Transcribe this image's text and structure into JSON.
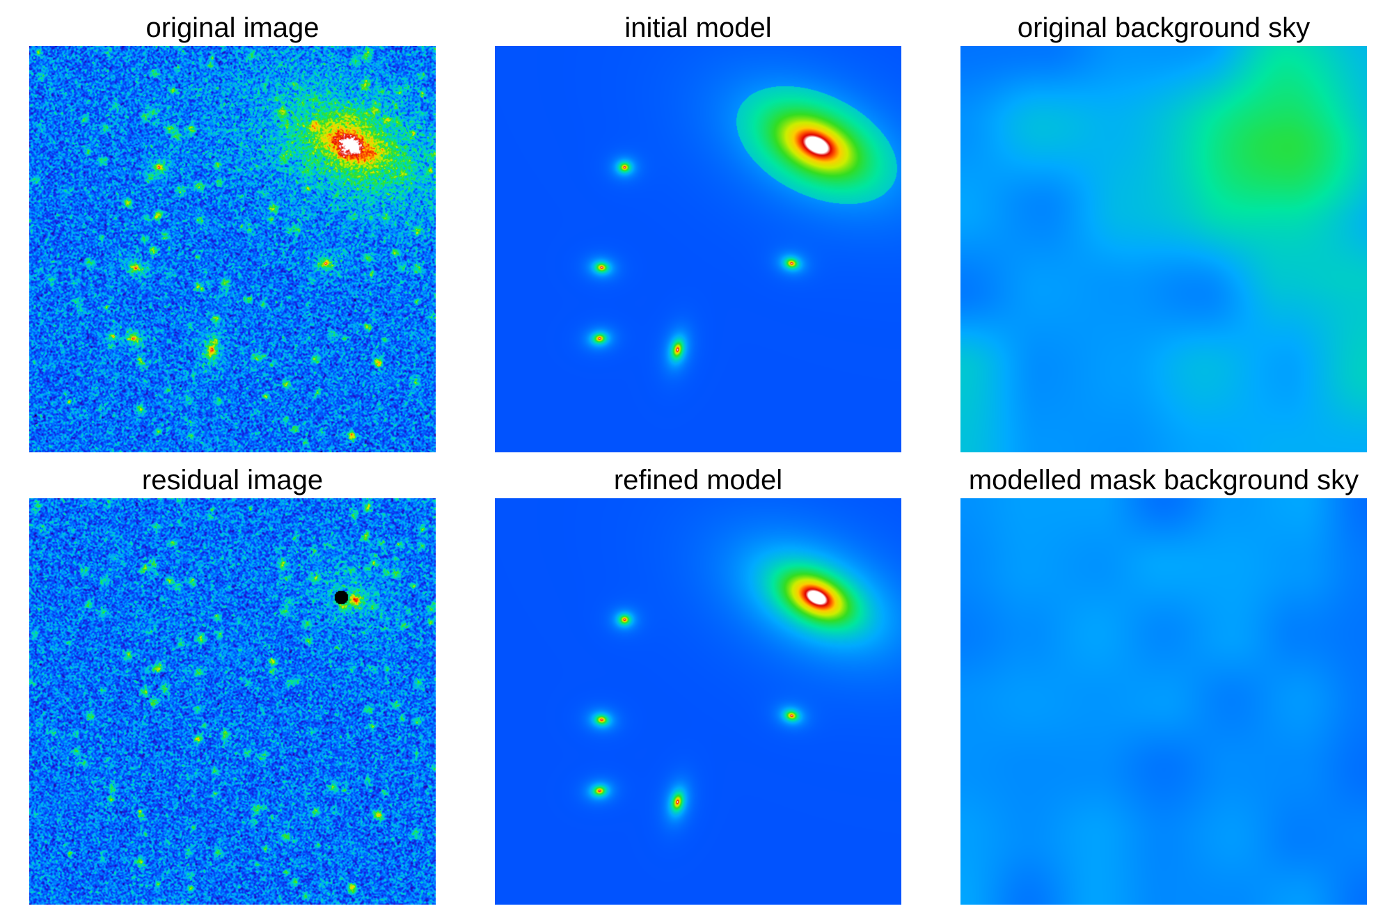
{
  "figure": {
    "panels": [
      {
        "id": "original-image",
        "title": "original image",
        "kind": "noisy-field",
        "sources": true,
        "residual_holes": false,
        "noise": true
      },
      {
        "id": "initial-model",
        "title": "initial model",
        "kind": "model",
        "boxed_halos": true
      },
      {
        "id": "original-background-sky",
        "title": "original background sky",
        "kind": "sky",
        "variant": "original"
      },
      {
        "id": "residual-image",
        "title": "residual image",
        "kind": "noisy-field",
        "sources": false,
        "residual_holes": true,
        "noise": true
      },
      {
        "id": "refined-model",
        "title": "refined model",
        "kind": "model",
        "boxed_halos": false
      },
      {
        "id": "modelled-mask-background-sky",
        "title": "modelled mask background sky",
        "kind": "sky",
        "variant": "modelled"
      }
    ],
    "colormap": [
      "#000000",
      "#2a0a7a",
      "#1a1ad8",
      "#0055ff",
      "#00aaff",
      "#00e6a0",
      "#33dd22",
      "#ccee00",
      "#ffcc00",
      "#ff5500",
      "#dd0000",
      "#ffffff"
    ]
  }
}
